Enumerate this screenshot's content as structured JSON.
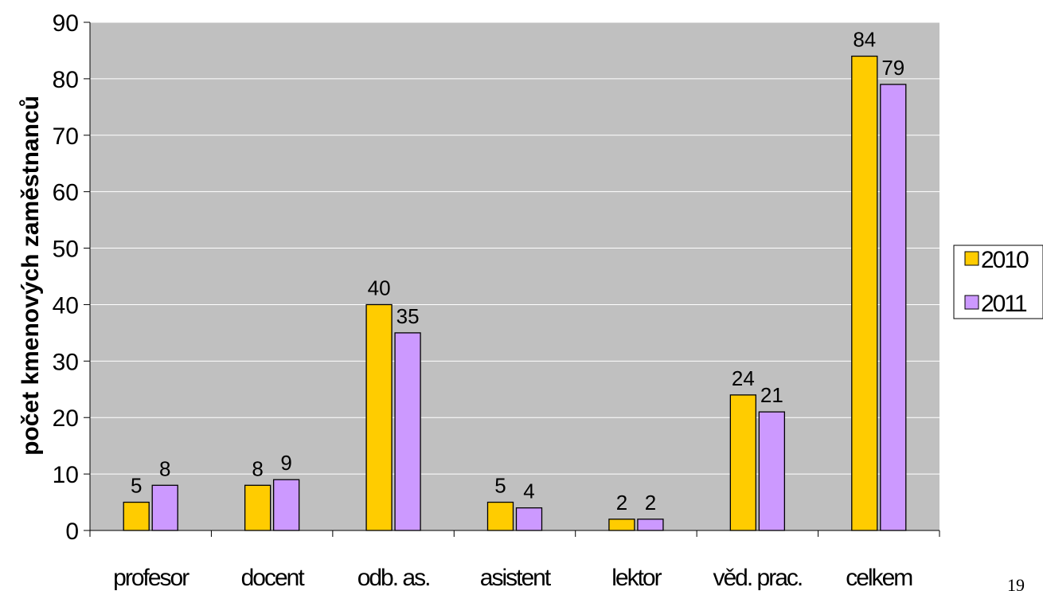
{
  "chart_data": {
    "type": "bar",
    "categories": [
      "profesor",
      "docent",
      "odb. as.",
      "asistent",
      "lektor",
      "věd. prac.",
      "celkem"
    ],
    "series": [
      {
        "name": "2010",
        "values": [
          5,
          8,
          40,
          5,
          2,
          24,
          84
        ],
        "color": "#ffcc00"
      },
      {
        "name": "2011",
        "values": [
          8,
          9,
          35,
          4,
          2,
          21,
          79
        ],
        "color": "#cc99ff"
      }
    ],
    "ylabel": "počet kmenových zaměstnanců",
    "xlabel": "",
    "ylim": [
      0,
      90
    ],
    "yticks": [
      0,
      10,
      20,
      30,
      40,
      50,
      60,
      70,
      80,
      90
    ],
    "grid": true,
    "plot_background": "#c0c0c0",
    "legend_position": "right"
  },
  "page_number": "19"
}
